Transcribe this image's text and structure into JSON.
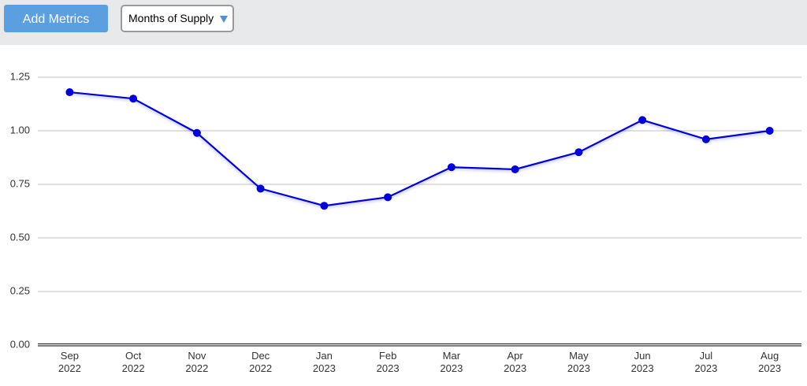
{
  "ui": {
    "add_button": "Add Metrics",
    "dropdown": "Months of Supply"
  },
  "chart_data": {
    "type": "line",
    "categories": [
      "Sep 2022",
      "Oct 2022",
      "Nov 2022",
      "Dec 2022",
      "Jan 2023",
      "Feb 2023",
      "Mar 2023",
      "Apr 2023",
      "May 2023",
      "Jun 2023",
      "Jul 2023",
      "Aug 2023"
    ],
    "series": [
      {
        "color": "#0000dd",
        "values": [
          1.18,
          1.15,
          0.99,
          0.73,
          0.65,
          0.69,
          0.83,
          0.82,
          0.9,
          1.05,
          0.96,
          1.0
        ]
      }
    ],
    "ylim": [
      0,
      1.25
    ],
    "yticks": [
      {
        "value": 0,
        "label": "0.00"
      },
      0.25,
      {
        "value": 0.5,
        "label": "0.50"
      },
      0.75,
      {
        "value": 1,
        "label": "1.00"
      },
      1.25
    ],
    "grid": true
  }
}
